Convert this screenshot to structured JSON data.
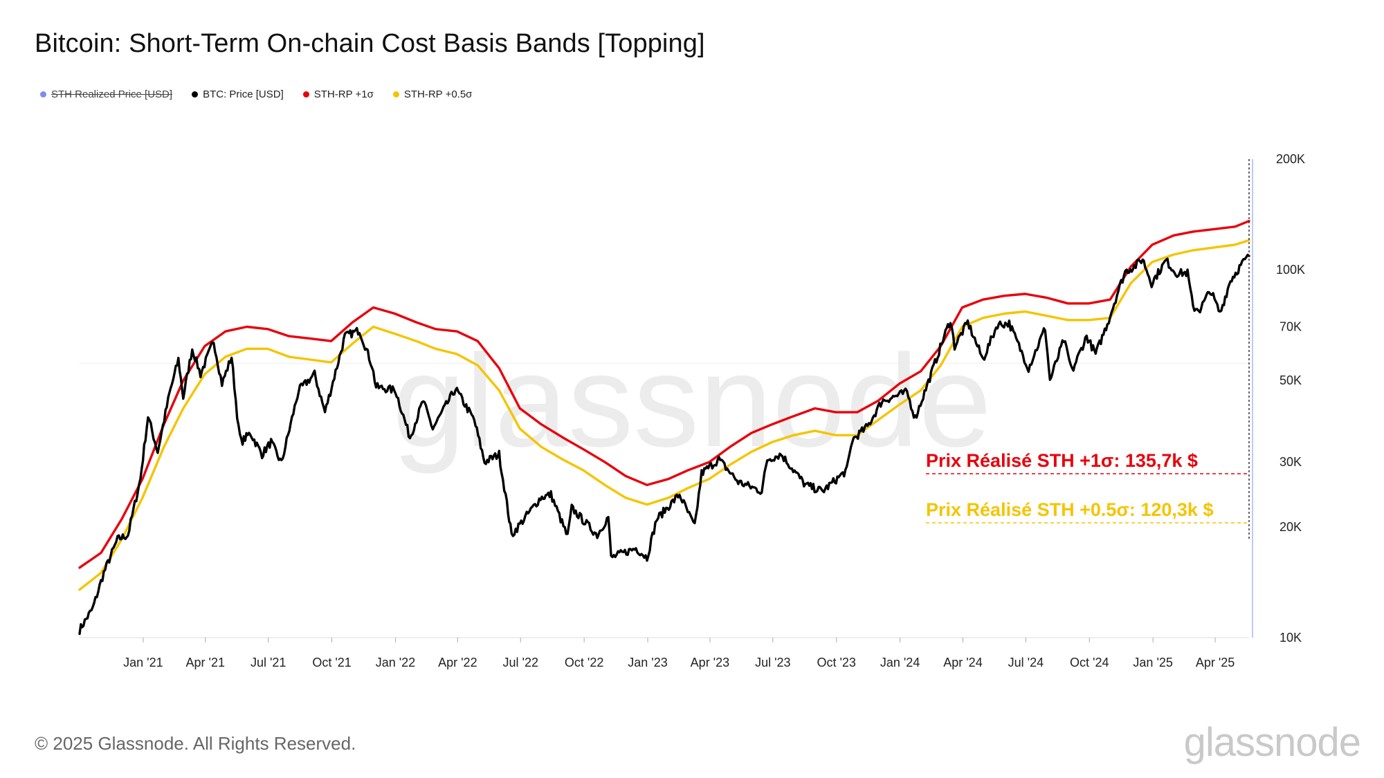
{
  "chart_data": {
    "type": "line",
    "title": "Bitcoin: Short-Term On-chain Cost Basis Bands [Topping]",
    "y_scale": "log",
    "ylim": [
      10000,
      200000
    ],
    "y_ticks": [
      {
        "value": 10000,
        "label": "10K"
      },
      {
        "value": 20000,
        "label": "20K"
      },
      {
        "value": 30000,
        "label": "30K"
      },
      {
        "value": 50000,
        "label": "50K"
      },
      {
        "value": 70000,
        "label": "70K"
      },
      {
        "value": 100000,
        "label": "100K"
      },
      {
        "value": 200000,
        "label": "200K"
      }
    ],
    "xlim": [
      "2020-10-01",
      "2025-05-20"
    ],
    "x_ticks": [
      {
        "date": "2021-01-01",
        "label": "Jan '21"
      },
      {
        "date": "2021-04-01",
        "label": "Apr '21"
      },
      {
        "date": "2021-07-01",
        "label": "Jul '21"
      },
      {
        "date": "2021-10-01",
        "label": "Oct '21"
      },
      {
        "date": "2022-01-01",
        "label": "Jan '22"
      },
      {
        "date": "2022-04-01",
        "label": "Apr '22"
      },
      {
        "date": "2022-07-01",
        "label": "Jul '22"
      },
      {
        "date": "2022-10-01",
        "label": "Oct '22"
      },
      {
        "date": "2023-01-01",
        "label": "Jan '23"
      },
      {
        "date": "2023-04-01",
        "label": "Apr '23"
      },
      {
        "date": "2023-07-01",
        "label": "Jul '23"
      },
      {
        "date": "2023-10-01",
        "label": "Oct '23"
      },
      {
        "date": "2024-01-01",
        "label": "Jan '24"
      },
      {
        "date": "2024-04-01",
        "label": "Apr '24"
      },
      {
        "date": "2024-07-01",
        "label": "Jul '24"
      },
      {
        "date": "2024-10-01",
        "label": "Oct '24"
      },
      {
        "date": "2025-01-01",
        "label": "Jan '25"
      },
      {
        "date": "2025-04-01",
        "label": "Apr '25"
      }
    ],
    "grid": false,
    "legend_position": "top-left",
    "series": [
      {
        "name": "STH Realized Price [USD]",
        "color": "#7b8cf0",
        "visible": false,
        "points": []
      },
      {
        "name": "BTC: Price [USD]",
        "color": "#000000",
        "visible": true,
        "points": [
          [
            "2020-10-01",
            10500
          ],
          [
            "2020-10-20",
            12000
          ],
          [
            "2020-11-05",
            15000
          ],
          [
            "2020-11-25",
            18500
          ],
          [
            "2020-12-10",
            19000
          ],
          [
            "2020-12-28",
            27000
          ],
          [
            "2021-01-08",
            40000
          ],
          [
            "2021-01-22",
            32000
          ],
          [
            "2021-02-08",
            46000
          ],
          [
            "2021-02-21",
            57000
          ],
          [
            "2021-02-28",
            45000
          ],
          [
            "2021-03-13",
            61000
          ],
          [
            "2021-03-25",
            52000
          ],
          [
            "2021-04-13",
            64000
          ],
          [
            "2021-04-25",
            49000
          ],
          [
            "2021-05-09",
            58000
          ],
          [
            "2021-05-19",
            37000
          ],
          [
            "2021-05-23",
            34000
          ],
          [
            "2021-06-05",
            36000
          ],
          [
            "2021-06-22",
            31500
          ],
          [
            "2021-07-05",
            34000
          ],
          [
            "2021-07-20",
            29800
          ],
          [
            "2021-08-14",
            47000
          ],
          [
            "2021-09-06",
            52000
          ],
          [
            "2021-09-21",
            41000
          ],
          [
            "2021-10-20",
            66000
          ],
          [
            "2021-11-10",
            68500
          ],
          [
            "2021-11-28",
            55000
          ],
          [
            "2021-12-04",
            48000
          ],
          [
            "2022-01-01",
            47000
          ],
          [
            "2022-01-22",
            35000
          ],
          [
            "2022-02-10",
            44000
          ],
          [
            "2022-02-24",
            37000
          ],
          [
            "2022-03-29",
            47500
          ],
          [
            "2022-04-25",
            39000
          ],
          [
            "2022-05-10",
            30000
          ],
          [
            "2022-05-31",
            31500
          ],
          [
            "2022-06-13",
            22000
          ],
          [
            "2022-06-18",
            19000
          ],
          [
            "2022-07-30",
            24000
          ],
          [
            "2022-08-14",
            24500
          ],
          [
            "2022-09-07",
            18800
          ],
          [
            "2022-09-13",
            22500
          ],
          [
            "2022-10-20",
            19000
          ],
          [
            "2022-11-05",
            21300
          ],
          [
            "2022-11-09",
            16500
          ],
          [
            "2022-12-15",
            17500
          ],
          [
            "2022-12-31",
            16500
          ],
          [
            "2023-01-14",
            21000
          ],
          [
            "2023-02-16",
            24500
          ],
          [
            "2023-03-10",
            20000
          ],
          [
            "2023-03-20",
            28000
          ],
          [
            "2023-04-14",
            30500
          ],
          [
            "2023-05-12",
            26500
          ],
          [
            "2023-06-15",
            25000
          ],
          [
            "2023-06-23",
            30500
          ],
          [
            "2023-07-13",
            31500
          ],
          [
            "2023-08-17",
            26000
          ],
          [
            "2023-09-11",
            25000
          ],
          [
            "2023-10-16",
            28500
          ],
          [
            "2023-10-24",
            34500
          ],
          [
            "2023-11-15",
            37500
          ],
          [
            "2023-12-06",
            44000
          ],
          [
            "2024-01-11",
            46500
          ],
          [
            "2024-01-23",
            39500
          ],
          [
            "2024-02-15",
            52000
          ],
          [
            "2024-03-05",
            66000
          ],
          [
            "2024-03-14",
            73000
          ],
          [
            "2024-03-20",
            62000
          ],
          [
            "2024-04-08",
            72000
          ],
          [
            "2024-04-30",
            57000
          ],
          [
            "2024-05-21",
            71000
          ],
          [
            "2024-06-07",
            71500
          ],
          [
            "2024-07-05",
            54000
          ],
          [
            "2024-07-29",
            69500
          ],
          [
            "2024-08-05",
            50000
          ],
          [
            "2024-08-25",
            64500
          ],
          [
            "2024-09-06",
            53000
          ],
          [
            "2024-09-27",
            66000
          ],
          [
            "2024-10-10",
            59000
          ],
          [
            "2024-10-29",
            73000
          ],
          [
            "2024-11-12",
            88000
          ],
          [
            "2024-11-22",
            99000
          ],
          [
            "2024-12-05",
            102000
          ],
          [
            "2024-12-17",
            107000
          ],
          [
            "2024-12-30",
            92000
          ],
          [
            "2025-01-20",
            106000
          ],
          [
            "2025-02-03",
            98000
          ],
          [
            "2025-02-20",
            98000
          ],
          [
            "2025-02-28",
            79000
          ],
          [
            "2025-03-10",
            78000
          ],
          [
            "2025-03-25",
            88000
          ],
          [
            "2025-04-08",
            76000
          ],
          [
            "2025-04-23",
            93500
          ],
          [
            "2025-05-10",
            104000
          ],
          [
            "2025-05-20",
            109000
          ]
        ]
      },
      {
        "name": "STH-RP +1σ",
        "color": "#e8000b",
        "visible": true,
        "points": [
          [
            "2020-10-01",
            15500
          ],
          [
            "2020-11-01",
            17000
          ],
          [
            "2020-12-01",
            21000
          ],
          [
            "2020-12-31",
            27000
          ],
          [
            "2021-01-31",
            38000
          ],
          [
            "2021-02-28",
            50000
          ],
          [
            "2021-03-31",
            62000
          ],
          [
            "2021-04-30",
            68000
          ],
          [
            "2021-05-31",
            70000
          ],
          [
            "2021-06-30",
            69000
          ],
          [
            "2021-07-31",
            66000
          ],
          [
            "2021-08-31",
            65000
          ],
          [
            "2021-09-30",
            64000
          ],
          [
            "2021-10-31",
            72000
          ],
          [
            "2021-11-30",
            79000
          ],
          [
            "2021-12-31",
            76000
          ],
          [
            "2022-01-31",
            72000
          ],
          [
            "2022-02-28",
            69000
          ],
          [
            "2022-03-31",
            68000
          ],
          [
            "2022-04-30",
            64000
          ],
          [
            "2022-05-31",
            54000
          ],
          [
            "2022-06-30",
            42000
          ],
          [
            "2022-07-31",
            38000
          ],
          [
            "2022-08-31",
            35000
          ],
          [
            "2022-09-30",
            32500
          ],
          [
            "2022-10-31",
            30000
          ],
          [
            "2022-11-30",
            27500
          ],
          [
            "2022-12-31",
            26000
          ],
          [
            "2023-01-31",
            27000
          ],
          [
            "2023-02-28",
            28500
          ],
          [
            "2023-03-31",
            30000
          ],
          [
            "2023-04-30",
            33000
          ],
          [
            "2023-05-31",
            36000
          ],
          [
            "2023-06-30",
            38000
          ],
          [
            "2023-07-31",
            40000
          ],
          [
            "2023-08-31",
            42000
          ],
          [
            "2023-09-30",
            41000
          ],
          [
            "2023-10-31",
            41000
          ],
          [
            "2023-11-30",
            44000
          ],
          [
            "2023-12-31",
            49000
          ],
          [
            "2024-01-31",
            53000
          ],
          [
            "2024-02-29",
            62000
          ],
          [
            "2024-03-31",
            79000
          ],
          [
            "2024-04-30",
            83000
          ],
          [
            "2024-05-31",
            85000
          ],
          [
            "2024-06-30",
            86000
          ],
          [
            "2024-07-31",
            84000
          ],
          [
            "2024-08-31",
            81000
          ],
          [
            "2024-09-30",
            81000
          ],
          [
            "2024-10-31",
            83000
          ],
          [
            "2024-11-30",
            102000
          ],
          [
            "2024-12-31",
            117000
          ],
          [
            "2025-01-31",
            124000
          ],
          [
            "2025-02-28",
            127000
          ],
          [
            "2025-03-31",
            129000
          ],
          [
            "2025-04-30",
            131000
          ],
          [
            "2025-05-20",
            135700
          ]
        ]
      },
      {
        "name": "STH-RP +0.5σ",
        "color": "#f5c400",
        "visible": true,
        "points": [
          [
            "2020-10-01",
            13500
          ],
          [
            "2020-11-01",
            15000
          ],
          [
            "2020-12-01",
            18500
          ],
          [
            "2020-12-31",
            24000
          ],
          [
            "2021-01-31",
            33000
          ],
          [
            "2021-02-28",
            42000
          ],
          [
            "2021-03-31",
            52000
          ],
          [
            "2021-04-30",
            58000
          ],
          [
            "2021-05-31",
            61000
          ],
          [
            "2021-06-30",
            61000
          ],
          [
            "2021-07-31",
            58000
          ],
          [
            "2021-08-31",
            57000
          ],
          [
            "2021-09-30",
            56000
          ],
          [
            "2021-10-31",
            63000
          ],
          [
            "2021-11-30",
            70000
          ],
          [
            "2021-12-31",
            67000
          ],
          [
            "2022-01-31",
            64000
          ],
          [
            "2022-02-28",
            61000
          ],
          [
            "2022-03-31",
            59000
          ],
          [
            "2022-04-30",
            55000
          ],
          [
            "2022-05-31",
            47000
          ],
          [
            "2022-06-30",
            37000
          ],
          [
            "2022-07-31",
            33000
          ],
          [
            "2022-08-31",
            30500
          ],
          [
            "2022-09-30",
            28500
          ],
          [
            "2022-10-31",
            26000
          ],
          [
            "2022-11-30",
            24000
          ],
          [
            "2022-12-31",
            23000
          ],
          [
            "2023-01-31",
            24000
          ],
          [
            "2023-02-28",
            25500
          ],
          [
            "2023-03-31",
            27000
          ],
          [
            "2023-04-30",
            29500
          ],
          [
            "2023-05-31",
            32000
          ],
          [
            "2023-06-30",
            34000
          ],
          [
            "2023-07-31",
            35500
          ],
          [
            "2023-08-31",
            36500
          ],
          [
            "2023-09-30",
            35500
          ],
          [
            "2023-10-31",
            35500
          ],
          [
            "2023-11-30",
            39000
          ],
          [
            "2023-12-31",
            43000
          ],
          [
            "2024-01-31",
            47000
          ],
          [
            "2024-02-29",
            55000
          ],
          [
            "2024-03-31",
            70000
          ],
          [
            "2024-04-30",
            74000
          ],
          [
            "2024-05-31",
            76000
          ],
          [
            "2024-06-30",
            77000
          ],
          [
            "2024-07-31",
            75000
          ],
          [
            "2024-08-31",
            73000
          ],
          [
            "2024-09-30",
            73000
          ],
          [
            "2024-10-31",
            74000
          ],
          [
            "2024-11-30",
            92000
          ],
          [
            "2024-12-31",
            105000
          ],
          [
            "2025-01-31",
            110000
          ],
          [
            "2025-02-28",
            113000
          ],
          [
            "2025-03-31",
            115000
          ],
          [
            "2025-04-30",
            117000
          ],
          [
            "2025-05-20",
            120300
          ]
        ]
      }
    ],
    "annotations": [
      {
        "text": "Prix Réalisé STH +1σ: 135,7k $",
        "color": "#e8000b",
        "value": 135700
      },
      {
        "text": "Prix Réalisé STH +0.5σ: 120,3k $",
        "color": "#f5c400",
        "value": 120300
      }
    ]
  },
  "footer": {
    "copyright": "© 2025 Glassnode. All Rights Reserved.",
    "brand": "glassnode",
    "watermark": "glassnode"
  }
}
